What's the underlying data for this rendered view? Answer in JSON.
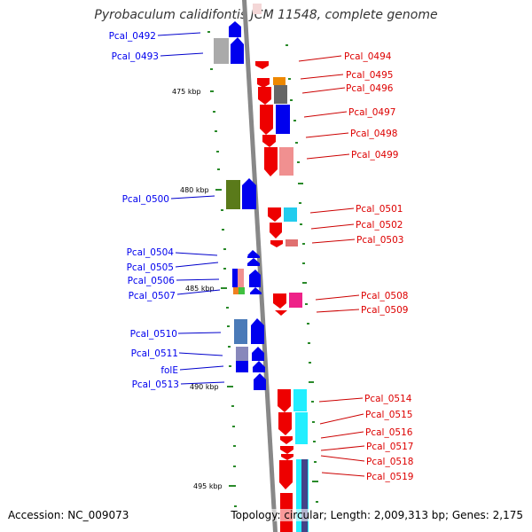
{
  "title": "Pyrobaculum calidifontis JCM 11548, complete genome",
  "footer": {
    "accession": "Accession: NC_009073",
    "topology": "Topology: circular; Length: 2,009,313 bp; Genes: 2,175"
  },
  "kbp_labels": [
    "475 kbp",
    "480 kbp",
    "485 kbp",
    "490 kbp",
    "495 kbp"
  ],
  "genes_left": [
    {
      "name": "Pcal_0492",
      "color": "#0000ee"
    },
    {
      "name": "Pcal_0493",
      "color": "#0000ee"
    },
    {
      "name": "Pcal_0500",
      "color": "#0000ee"
    },
    {
      "name": "Pcal_0504",
      "color": "#0000ee"
    },
    {
      "name": "Pcal_0505",
      "color": "#0000ee"
    },
    {
      "name": "Pcal_0506",
      "color": "#0000ee"
    },
    {
      "name": "Pcal_0507",
      "color": "#0000ee"
    },
    {
      "name": "Pcal_0510",
      "color": "#0000ee"
    },
    {
      "name": "Pcal_0511",
      "color": "#0000ee"
    },
    {
      "name": "folE",
      "color": "#0000ee"
    },
    {
      "name": "Pcal_0513",
      "color": "#0000ee"
    }
  ],
  "genes_right": [
    {
      "name": "Pcal_0494",
      "color": "#dd0000"
    },
    {
      "name": "Pcal_0495",
      "color": "#dd0000"
    },
    {
      "name": "Pcal_0496",
      "color": "#dd0000"
    },
    {
      "name": "Pcal_0497",
      "color": "#dd0000"
    },
    {
      "name": "Pcal_0498",
      "color": "#dd0000"
    },
    {
      "name": "Pcal_0499",
      "color": "#dd0000"
    },
    {
      "name": "Pcal_0501",
      "color": "#dd0000"
    },
    {
      "name": "Pcal_0502",
      "color": "#dd0000"
    },
    {
      "name": "Pcal_0503",
      "color": "#dd0000"
    },
    {
      "name": "Pcal_0508",
      "color": "#dd0000"
    },
    {
      "name": "Pcal_0509",
      "color": "#dd0000"
    },
    {
      "name": "Pcal_0514",
      "color": "#dd0000"
    },
    {
      "name": "Pcal_0515",
      "color": "#dd0000"
    },
    {
      "name": "Pcal_0516",
      "color": "#dd0000"
    },
    {
      "name": "Pcal_0517",
      "color": "#dd0000"
    },
    {
      "name": "Pcal_0518",
      "color": "#dd0000"
    },
    {
      "name": "Pcal_0519",
      "color": "#dd0000"
    }
  ]
}
